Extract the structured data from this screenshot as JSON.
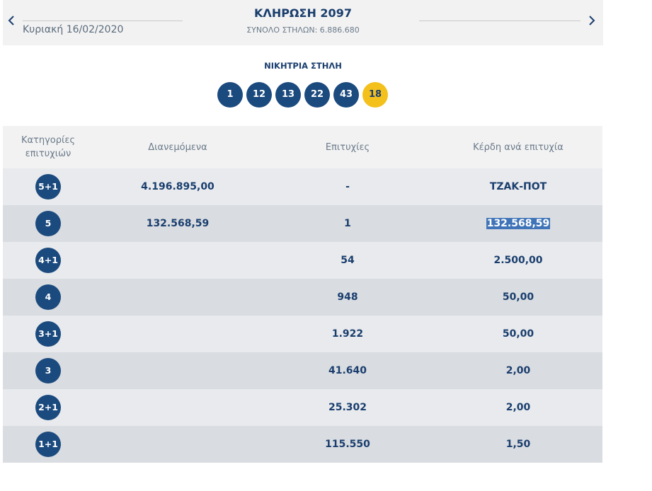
{
  "header": {
    "date": "Κυριακή 16/02/2020",
    "draw_title": "ΚΛΗΡΩΣΗ 2097",
    "total_columns": "ΣΥΝΟΛΟ ΣΤΗΛΩΝ: 6.886.680",
    "prev_icon": "chevron-left-icon",
    "next_icon": "chevron-right-icon"
  },
  "winning": {
    "title": "ΝΙΚΗΤΡΙΑ ΣΤΗΛΗ",
    "numbers": [
      "1",
      "12",
      "13",
      "22",
      "43"
    ],
    "joker": "18"
  },
  "table": {
    "headers": {
      "category_line1": "Κατηγορίες",
      "category_line2": "επιτυχιών",
      "distributed": "Διανεμόμενα",
      "winners": "Επιτυχίες",
      "prize": "Κέρδη ανά επιτυχία"
    },
    "rows": [
      {
        "category": "5+1",
        "distributed": "4.196.895,00",
        "winners": "-",
        "prize": "ΤΖΑΚ-ΠΟΤ"
      },
      {
        "category": "5",
        "distributed": "132.568,59",
        "winners": "1",
        "prize": "132.568,59"
      },
      {
        "category": "4+1",
        "distributed": "",
        "winners": "54",
        "prize": "2.500,00"
      },
      {
        "category": "4",
        "distributed": "",
        "winners": "948",
        "prize": "50,00"
      },
      {
        "category": "3+1",
        "distributed": "",
        "winners": "1.922",
        "prize": "50,00"
      },
      {
        "category": "3",
        "distributed": "",
        "winners": "41.640",
        "prize": "2,00"
      },
      {
        "category": "2+1",
        "distributed": "",
        "winners": "25.302",
        "prize": "2,00"
      },
      {
        "category": "1+1",
        "distributed": "",
        "winners": "115.550",
        "prize": "1,50"
      }
    ]
  },
  "colors": {
    "primary": "#1b4a7e",
    "joker": "#f3c01c",
    "selection": "#3f74b8"
  }
}
